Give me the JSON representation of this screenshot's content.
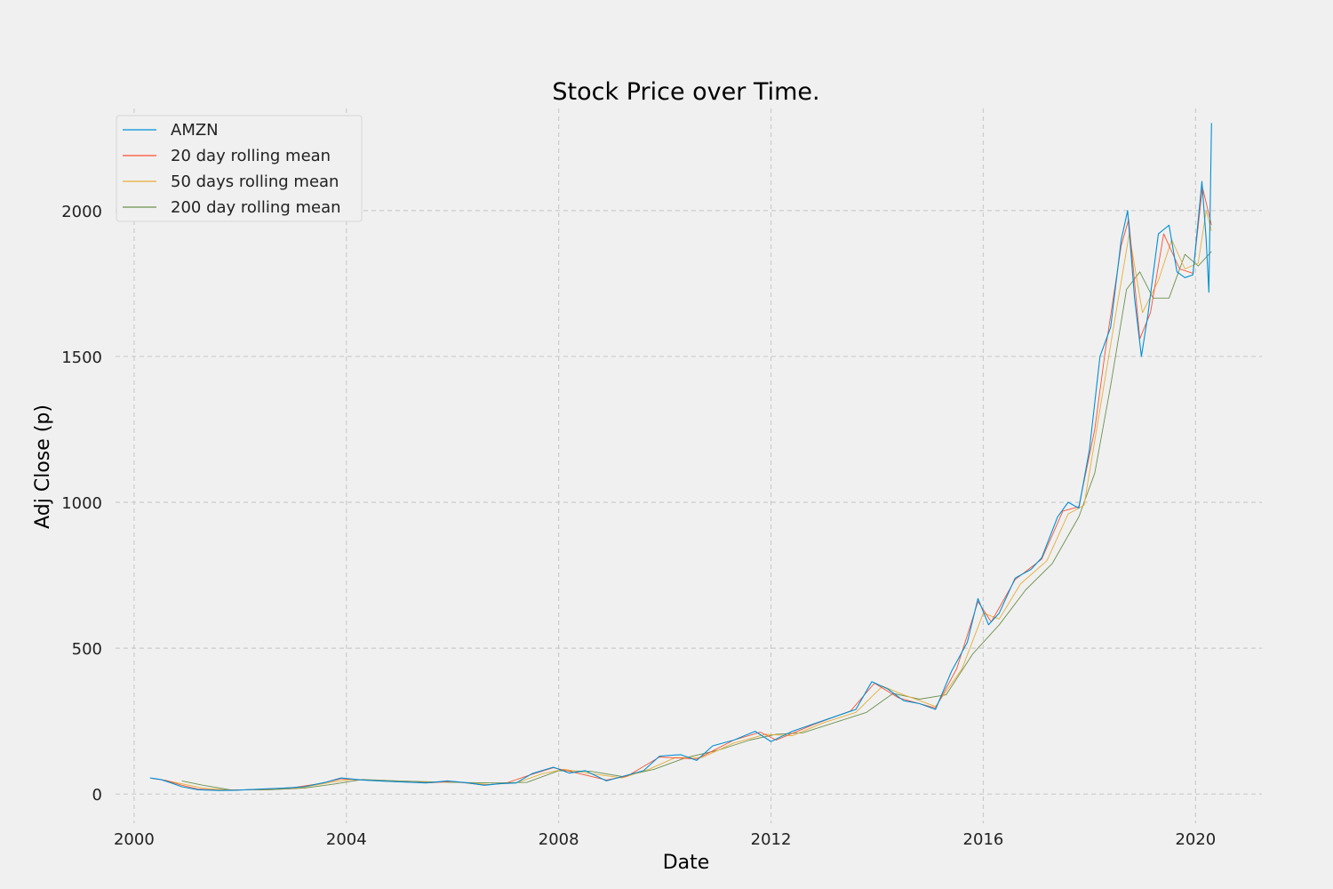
{
  "colors": {
    "background": "#f0f0f0",
    "grid": "#cbcbcb",
    "price": "#008fd5",
    "ma20": "#fc4f30",
    "ma50": "#e5ae38",
    "ma200": "#6d904f"
  },
  "chart_data": {
    "type": "line",
    "title": "Stock Price over Time.",
    "xlabel": "Date",
    "ylabel": "Adj Close (p)",
    "xlim": [
      1999.65,
      2021.25
    ],
    "ylim": [
      -100,
      2350
    ],
    "x_ticks": [
      2000,
      2004,
      2008,
      2012,
      2016,
      2020
    ],
    "x_tick_labels": [
      "2000",
      "2004",
      "2008",
      "2012",
      "2016",
      "2020"
    ],
    "y_ticks": [
      0,
      500,
      1000,
      1500,
      2000
    ],
    "y_tick_labels": [
      "0",
      "500",
      "1000",
      "1500",
      "2000"
    ],
    "grid": true,
    "legend_position": "top-left",
    "series": [
      {
        "name": "AMZN",
        "color_key": "price",
        "points": [
          [
            2000.3,
            55
          ],
          [
            2000.5,
            50
          ],
          [
            2000.7,
            38
          ],
          [
            2000.9,
            25
          ],
          [
            2001.2,
            15
          ],
          [
            2001.6,
            12
          ],
          [
            2001.9,
            13
          ],
          [
            2002.4,
            17
          ],
          [
            2002.8,
            20
          ],
          [
            2003.2,
            25
          ],
          [
            2003.6,
            40
          ],
          [
            2003.9,
            55
          ],
          [
            2004.3,
            48
          ],
          [
            2004.7,
            44
          ],
          [
            2005.0,
            42
          ],
          [
            2005.5,
            38
          ],
          [
            2005.9,
            45
          ],
          [
            2006.3,
            38
          ],
          [
            2006.6,
            30
          ],
          [
            2006.9,
            36
          ],
          [
            2007.2,
            38
          ],
          [
            2007.5,
            70
          ],
          [
            2007.9,
            92
          ],
          [
            2008.2,
            72
          ],
          [
            2008.5,
            80
          ],
          [
            2008.9,
            45
          ],
          [
            2009.2,
            60
          ],
          [
            2009.6,
            80
          ],
          [
            2009.9,
            130
          ],
          [
            2010.3,
            135
          ],
          [
            2010.6,
            115
          ],
          [
            2010.9,
            165
          ],
          [
            2011.3,
            185
          ],
          [
            2011.7,
            215
          ],
          [
            2012.0,
            180
          ],
          [
            2012.4,
            215
          ],
          [
            2012.8,
            240
          ],
          [
            2013.2,
            265
          ],
          [
            2013.6,
            290
          ],
          [
            2013.9,
            385
          ],
          [
            2014.2,
            360
          ],
          [
            2014.5,
            320
          ],
          [
            2014.8,
            310
          ],
          [
            2015.1,
            290
          ],
          [
            2015.4,
            420
          ],
          [
            2015.7,
            520
          ],
          [
            2015.9,
            670
          ],
          [
            2016.1,
            580
          ],
          [
            2016.3,
            620
          ],
          [
            2016.6,
            740
          ],
          [
            2016.9,
            770
          ],
          [
            2017.1,
            810
          ],
          [
            2017.4,
            950
          ],
          [
            2017.6,
            1000
          ],
          [
            2017.8,
            980
          ],
          [
            2018.0,
            1180
          ],
          [
            2018.2,
            1500
          ],
          [
            2018.4,
            1600
          ],
          [
            2018.6,
            1900
          ],
          [
            2018.72,
            2000
          ],
          [
            2018.85,
            1700
          ],
          [
            2018.98,
            1500
          ],
          [
            2019.1,
            1640
          ],
          [
            2019.3,
            1920
          ],
          [
            2019.5,
            1950
          ],
          [
            2019.65,
            1790
          ],
          [
            2019.8,
            1770
          ],
          [
            2019.95,
            1780
          ],
          [
            2020.12,
            2100
          ],
          [
            2020.2,
            1900
          ],
          [
            2020.25,
            1720
          ],
          [
            2020.3,
            2300
          ]
        ]
      },
      {
        "name": "20 day rolling mean",
        "color_key": "ma20",
        "points": [
          [
            2000.35,
            53
          ],
          [
            2000.6,
            47
          ],
          [
            2000.9,
            30
          ],
          [
            2001.2,
            17
          ],
          [
            2001.6,
            13
          ],
          [
            2002.0,
            14
          ],
          [
            2002.5,
            17
          ],
          [
            2003.0,
            22
          ],
          [
            2003.5,
            36
          ],
          [
            2003.9,
            52
          ],
          [
            2004.5,
            46
          ],
          [
            2005.0,
            42
          ],
          [
            2005.6,
            39
          ],
          [
            2006.0,
            43
          ],
          [
            2006.6,
            31
          ],
          [
            2007.0,
            37
          ],
          [
            2007.5,
            68
          ],
          [
            2007.9,
            90
          ],
          [
            2008.3,
            74
          ],
          [
            2008.9,
            48
          ],
          [
            2009.3,
            62
          ],
          [
            2009.9,
            127
          ],
          [
            2010.6,
            120
          ],
          [
            2011.3,
            185
          ],
          [
            2011.8,
            212
          ],
          [
            2012.1,
            185
          ],
          [
            2012.8,
            238
          ],
          [
            2013.5,
            285
          ],
          [
            2013.95,
            380
          ],
          [
            2014.4,
            330
          ],
          [
            2015.1,
            295
          ],
          [
            2015.5,
            430
          ],
          [
            2015.9,
            660
          ],
          [
            2016.15,
            590
          ],
          [
            2016.6,
            735
          ],
          [
            2017.1,
            805
          ],
          [
            2017.5,
            970
          ],
          [
            2017.8,
            985
          ],
          [
            2018.1,
            1250
          ],
          [
            2018.3,
            1520
          ],
          [
            2018.6,
            1880
          ],
          [
            2018.74,
            1970
          ],
          [
            2018.95,
            1560
          ],
          [
            2019.15,
            1650
          ],
          [
            2019.4,
            1920
          ],
          [
            2019.7,
            1800
          ],
          [
            2019.95,
            1785
          ],
          [
            2020.13,
            2080
          ],
          [
            2020.3,
            1950
          ]
        ]
      },
      {
        "name": "50 days rolling mean",
        "color_key": "ma50",
        "points": [
          [
            2000.5,
            50
          ],
          [
            2000.9,
            35
          ],
          [
            2001.3,
            20
          ],
          [
            2001.8,
            13
          ],
          [
            2002.5,
            16
          ],
          [
            2003.2,
            23
          ],
          [
            2003.7,
            40
          ],
          [
            2004.1,
            50
          ],
          [
            2004.7,
            45
          ],
          [
            2005.4,
            40
          ],
          [
            2006.0,
            42
          ],
          [
            2006.7,
            33
          ],
          [
            2007.2,
            38
          ],
          [
            2007.7,
            70
          ],
          [
            2008.1,
            85
          ],
          [
            2008.6,
            70
          ],
          [
            2009.2,
            55
          ],
          [
            2009.7,
            85
          ],
          [
            2010.2,
            125
          ],
          [
            2010.7,
            125
          ],
          [
            2011.3,
            175
          ],
          [
            2011.9,
            205
          ],
          [
            2012.4,
            200
          ],
          [
            2013.0,
            245
          ],
          [
            2013.6,
            280
          ],
          [
            2014.1,
            370
          ],
          [
            2014.5,
            340
          ],
          [
            2015.1,
            300
          ],
          [
            2015.6,
            430
          ],
          [
            2016.0,
            620
          ],
          [
            2016.3,
            600
          ],
          [
            2016.7,
            720
          ],
          [
            2017.2,
            800
          ],
          [
            2017.6,
            960
          ],
          [
            2017.9,
            990
          ],
          [
            2018.2,
            1320
          ],
          [
            2018.5,
            1650
          ],
          [
            2018.75,
            1920
          ],
          [
            2019.0,
            1650
          ],
          [
            2019.3,
            1760
          ],
          [
            2019.55,
            1900
          ],
          [
            2019.8,
            1800
          ],
          [
            2020.05,
            1820
          ],
          [
            2020.2,
            2000
          ],
          [
            2020.3,
            1930
          ]
        ]
      },
      {
        "name": "200 day rolling mean",
        "color_key": "ma200",
        "points": [
          [
            2000.9,
            45
          ],
          [
            2001.3,
            30
          ],
          [
            2001.8,
            15
          ],
          [
            2002.5,
            14
          ],
          [
            2003.2,
            20
          ],
          [
            2003.8,
            35
          ],
          [
            2004.3,
            50
          ],
          [
            2005.0,
            45
          ],
          [
            2006.0,
            40
          ],
          [
            2006.8,
            38
          ],
          [
            2007.4,
            40
          ],
          [
            2008.0,
            80
          ],
          [
            2008.6,
            78
          ],
          [
            2009.2,
            60
          ],
          [
            2009.8,
            85
          ],
          [
            2010.4,
            125
          ],
          [
            2011.0,
            150
          ],
          [
            2011.6,
            185
          ],
          [
            2012.1,
            205
          ],
          [
            2012.6,
            210
          ],
          [
            2013.2,
            245
          ],
          [
            2013.8,
            280
          ],
          [
            2014.3,
            345
          ],
          [
            2014.8,
            325
          ],
          [
            2015.3,
            340
          ],
          [
            2015.8,
            480
          ],
          [
            2016.3,
            580
          ],
          [
            2016.8,
            700
          ],
          [
            2017.3,
            790
          ],
          [
            2017.8,
            950
          ],
          [
            2018.1,
            1100
          ],
          [
            2018.4,
            1400
          ],
          [
            2018.7,
            1730
          ],
          [
            2018.95,
            1790
          ],
          [
            2019.2,
            1700
          ],
          [
            2019.5,
            1700
          ],
          [
            2019.8,
            1850
          ],
          [
            2020.05,
            1810
          ],
          [
            2020.3,
            1860
          ]
        ]
      }
    ]
  }
}
